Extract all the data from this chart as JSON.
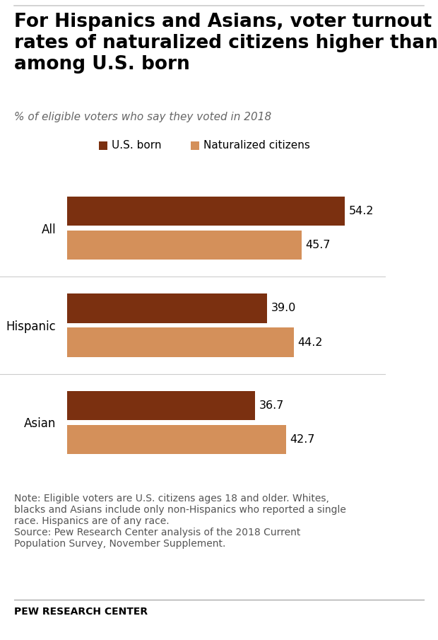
{
  "title": "For Hispanics and Asians, voter turnout\nrates of naturalized citizens higher than\namong U.S. born",
  "subtitle": "% of eligible voters who say they voted in 2018",
  "categories": [
    "All",
    "Hispanic",
    "Asian"
  ],
  "us_born": [
    54.2,
    39.0,
    36.7
  ],
  "naturalized": [
    45.7,
    44.2,
    42.7
  ],
  "us_born_color": "#7B3010",
  "naturalized_color": "#D4905A",
  "note_line1": "Note: Eligible voters are U.S. citizens ages 18 and older. Whites,",
  "note_line2": "blacks and Asians include only non-Hispanics who reported a single",
  "note_line3": "race. Hispanics are of any race.",
  "note_line4": "Source: Pew Research Center analysis of the 2018 Current",
  "note_line5": "Population Survey, November Supplement.",
  "source_label": "PEW RESEARCH CENTER",
  "legend_us_born": "U.S. born",
  "legend_naturalized": "Naturalized citizens",
  "xlim": [
    0,
    62
  ],
  "label_fontsize": 11.5,
  "title_fontsize": 19,
  "subtitle_fontsize": 11,
  "cat_fontsize": 12,
  "note_fontsize": 10,
  "source_fontsize": 10,
  "legend_fontsize": 11
}
